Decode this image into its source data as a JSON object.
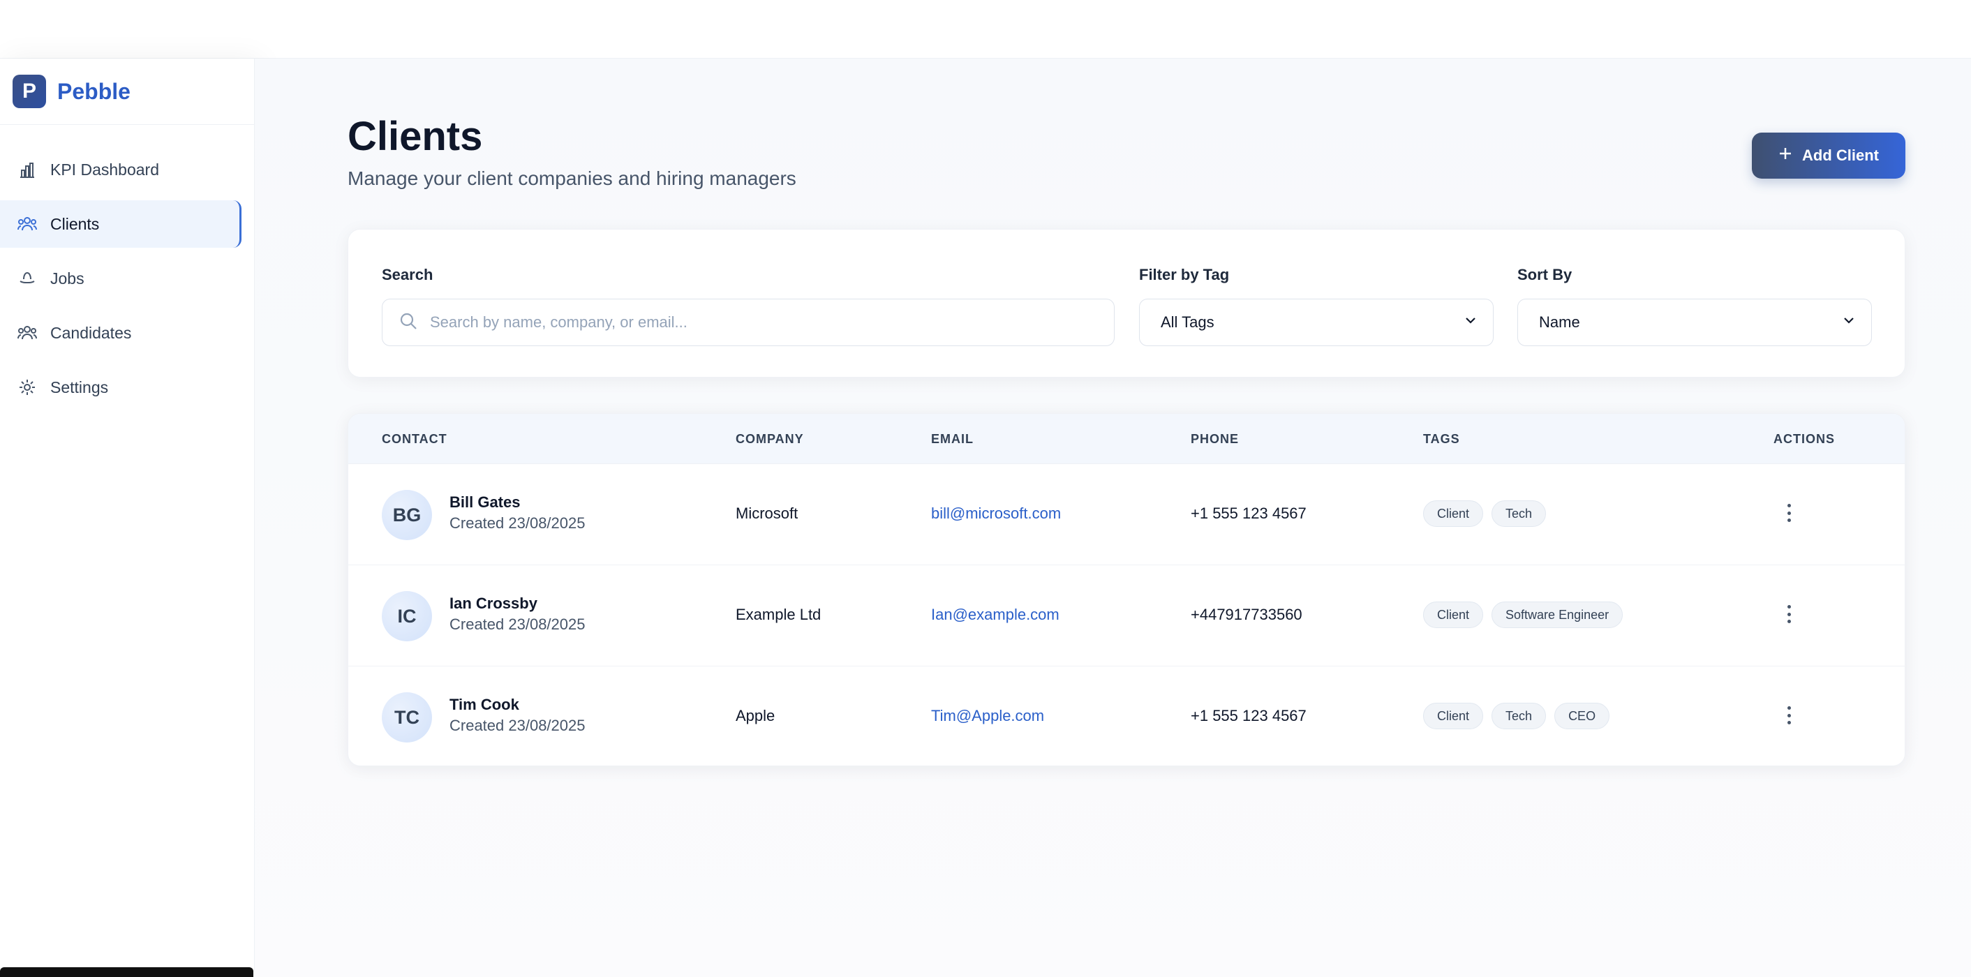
{
  "brand": {
    "logo_letter": "P",
    "name": "Pebble"
  },
  "sidebar": {
    "items": [
      {
        "label": "KPI Dashboard",
        "icon": "bar-chart-icon",
        "active": false
      },
      {
        "label": "Clients",
        "icon": "users-icon",
        "active": true
      },
      {
        "label": "Jobs",
        "icon": "hat-icon",
        "active": false
      },
      {
        "label": "Candidates",
        "icon": "people-icon",
        "active": false
      },
      {
        "label": "Settings",
        "icon": "gear-icon",
        "active": false
      }
    ]
  },
  "header": {
    "title": "Clients",
    "subtitle": "Manage your client companies and hiring managers",
    "add_button": "Add Client"
  },
  "filters": {
    "search_label": "Search",
    "search_placeholder": "Search by name, company, or email...",
    "tag_label": "Filter by Tag",
    "tag_value": "All Tags",
    "sort_label": "Sort By",
    "sort_value": "Name"
  },
  "table": {
    "columns": [
      "CONTACT",
      "COMPANY",
      "EMAIL",
      "PHONE",
      "TAGS",
      "ACTIONS"
    ],
    "rows": [
      {
        "initials": "BG",
        "name": "Bill Gates",
        "created": "Created 23/08/2025",
        "company": "Microsoft",
        "email": "bill@microsoft.com",
        "phone": "+1 555 123 4567",
        "tags": [
          "Client",
          "Tech"
        ]
      },
      {
        "initials": "IC",
        "name": "Ian Crossby",
        "created": "Created 23/08/2025",
        "company": "Example Ltd",
        "email": "Ian@example.com",
        "phone": "+447917733560",
        "tags": [
          "Client",
          "Software Engineer"
        ]
      },
      {
        "initials": "TC",
        "name": "Tim Cook",
        "created": "Created 23/08/2025",
        "company": "Apple",
        "email": "Tim@Apple.com",
        "phone": "+1 555 123 4567",
        "tags": [
          "Client",
          "Tech",
          "CEO"
        ]
      }
    ]
  },
  "colors": {
    "accent": "#2c5cc5",
    "link": "#2a5fc9",
    "active_bg": "#eef4fd"
  }
}
